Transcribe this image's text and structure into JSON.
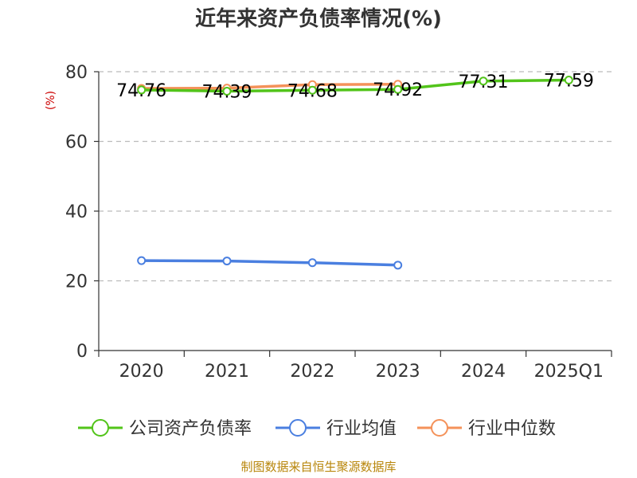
{
  "chart_data": {
    "type": "line",
    "title": "近年来资产负债率情况(%)",
    "ylabel": "(%)",
    "xlabel": "",
    "categories": [
      "2020",
      "2021",
      "2022",
      "2023",
      "2024",
      "2025Q1"
    ],
    "ylim": [
      0,
      80
    ],
    "yticks": [
      0,
      20,
      40,
      60,
      80
    ],
    "grid": true,
    "legend_position": "bottom",
    "series": [
      {
        "name": "公司资产负债率",
        "color": "#52c41a",
        "values": [
          74.76,
          74.39,
          74.68,
          74.92,
          77.31,
          77.59
        ],
        "labels": [
          "74.76",
          "74.39",
          "74.68",
          "74.92",
          "77.31",
          "77.59"
        ]
      },
      {
        "name": "行业均值",
        "color": "#4a7fe0",
        "values": [
          25.8,
          25.7,
          25.2,
          24.5,
          null,
          null
        ]
      },
      {
        "name": "行业中位数",
        "color": "#f4925a",
        "values": [
          75.2,
          75.3,
          76.3,
          76.4,
          null,
          null
        ]
      }
    ],
    "source": "制图数据来自恒生聚源数据库"
  }
}
